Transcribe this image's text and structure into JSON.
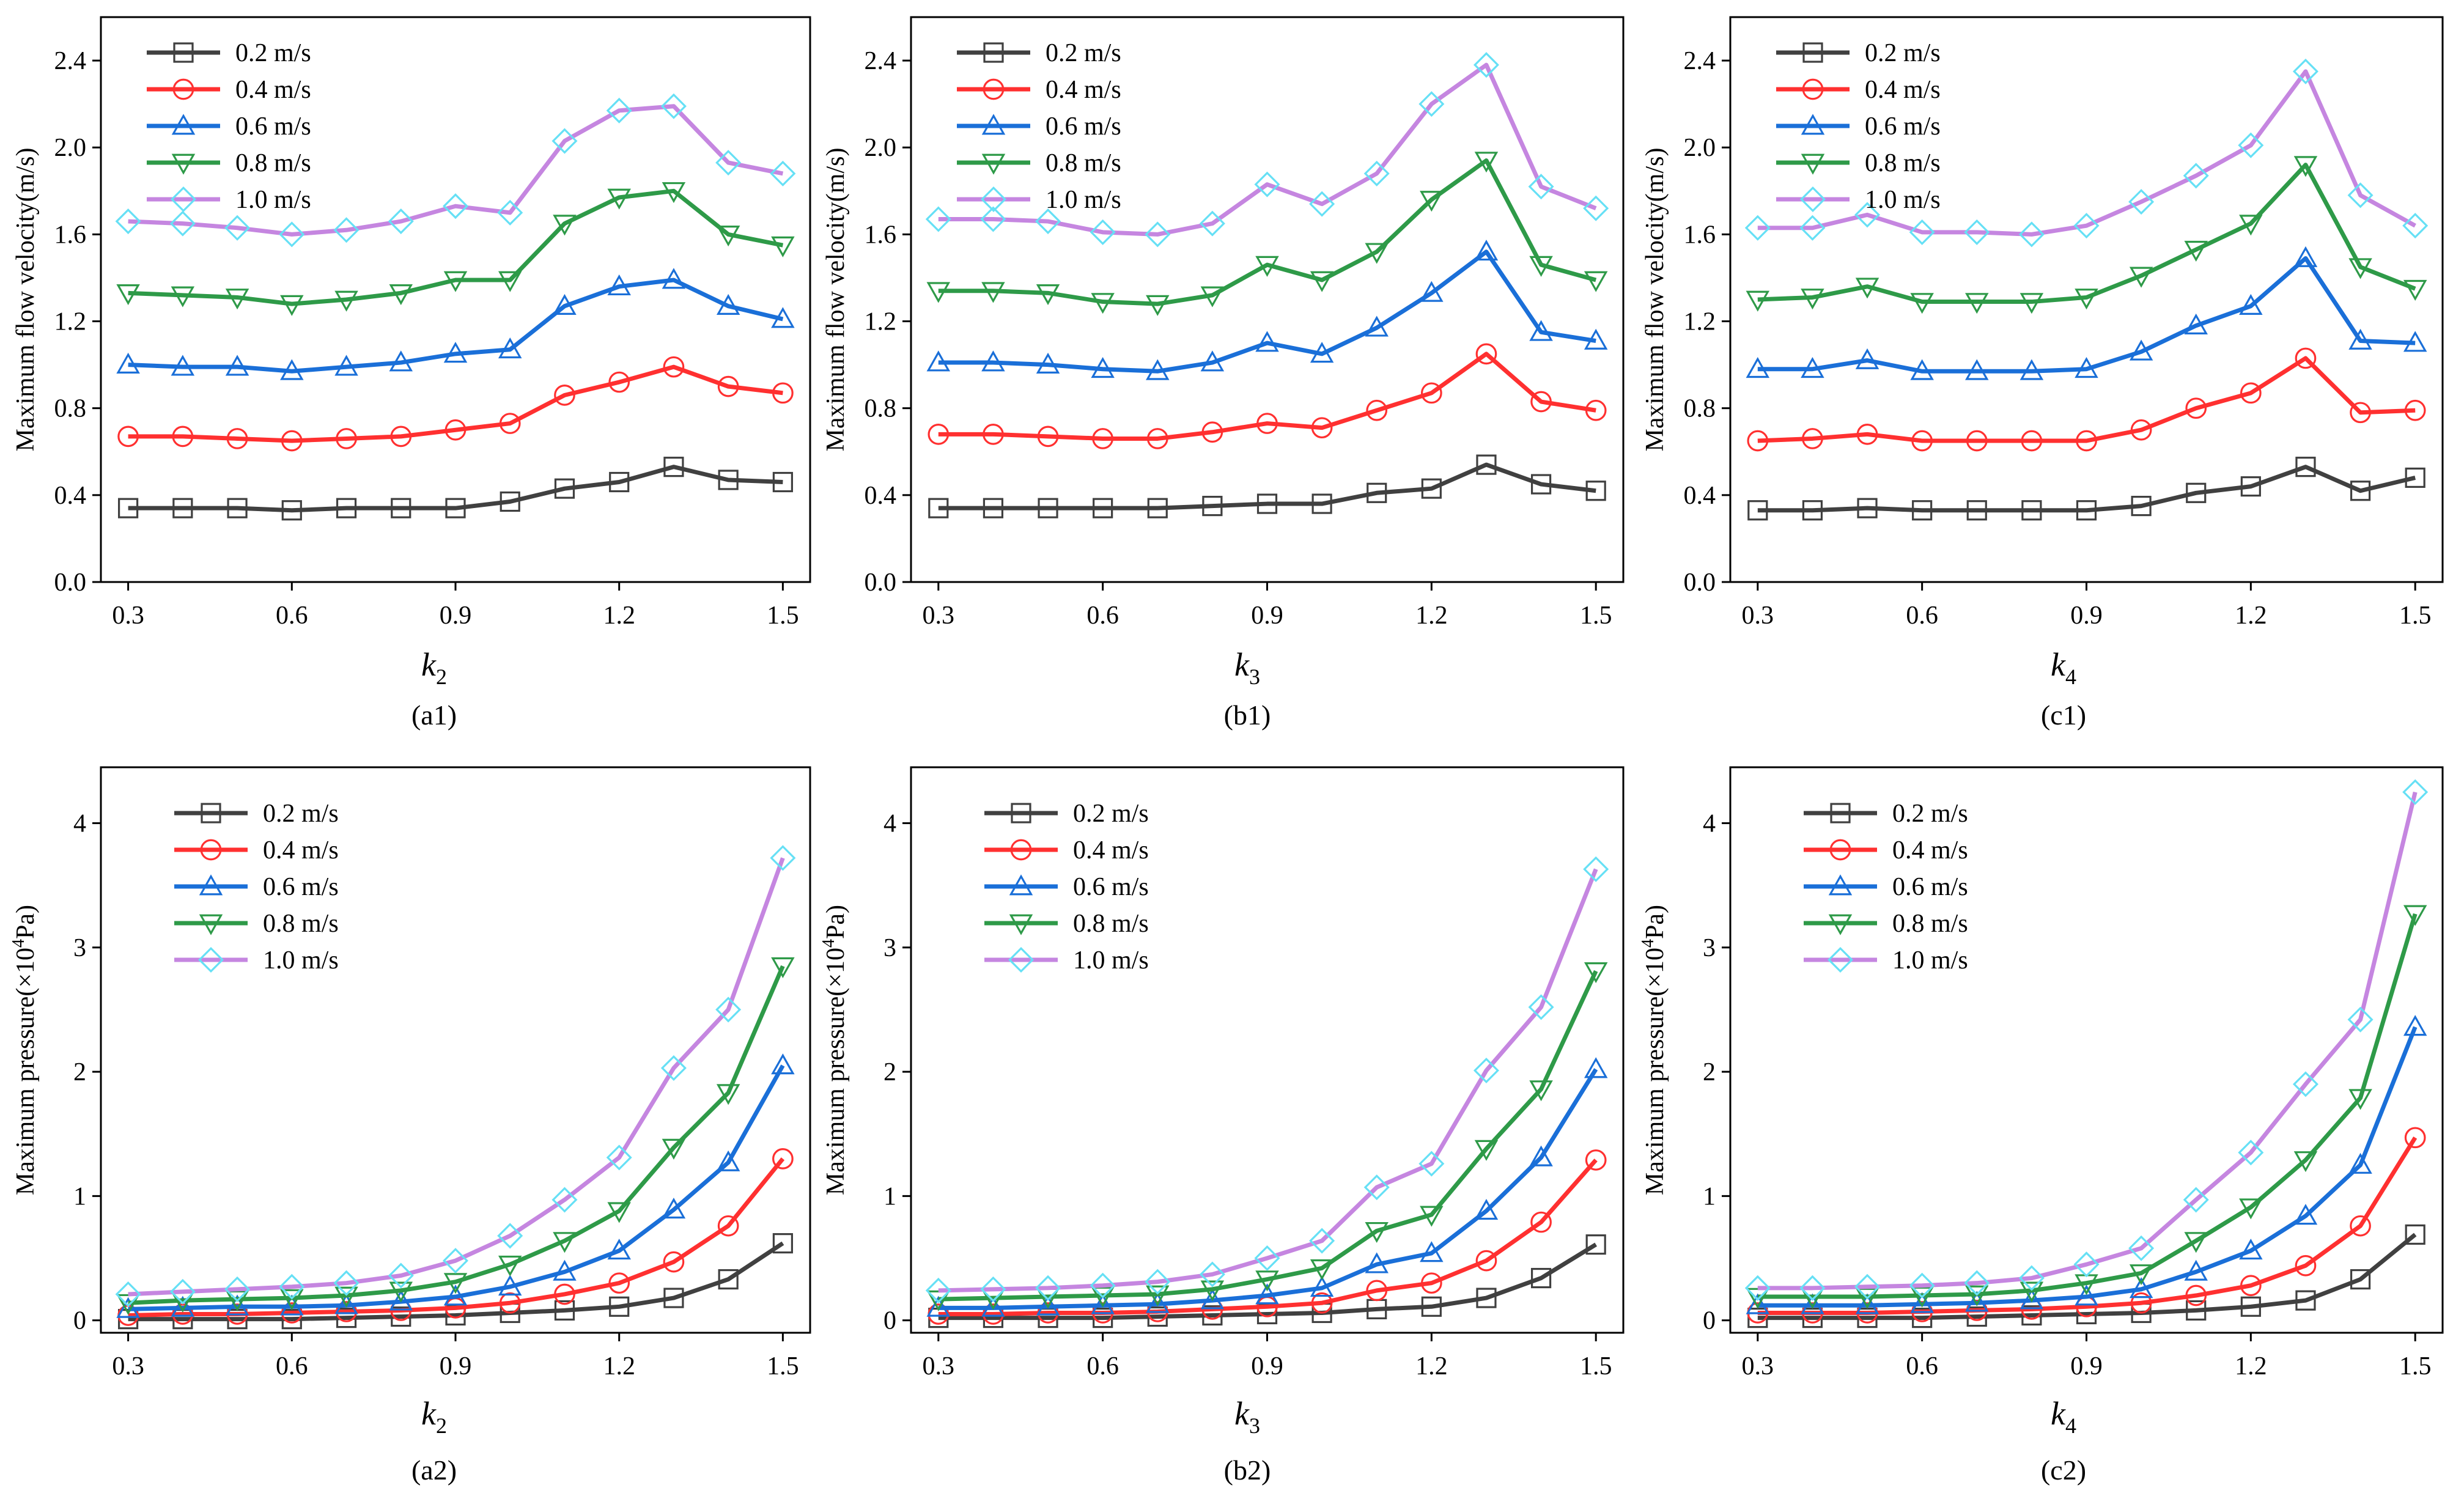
{
  "figure": {
    "series_styles": [
      {
        "color": "#404040",
        "marker": "square"
      },
      {
        "color": "#ff3030",
        "marker": "circle"
      },
      {
        "color": "#1a6fd8",
        "marker": "triangle-up"
      },
      {
        "color": "#2e9a48",
        "marker": "triangle-down"
      },
      {
        "color": "#c586e0",
        "marker": "diamond",
        "marker_color": "#66e0f5"
      }
    ]
  },
  "chart_data": [
    {
      "id": "a1",
      "type": "line",
      "caption": "(a1)",
      "xlabel": "k",
      "xlabel_sub": "2",
      "ylabel": "Maximum flow velocity(m/s)",
      "xlim": [
        0.25,
        1.55
      ],
      "ylim": [
        0,
        2.6
      ],
      "xticks": [
        "0.3",
        "0.6",
        "0.9",
        "1.2",
        "1.5"
      ],
      "yticks": [
        "0.0",
        "0.4",
        "0.8",
        "1.2",
        "1.6",
        "2.0",
        "2.4"
      ],
      "xtick_values": [
        0.3,
        0.6,
        0.9,
        1.2,
        1.5
      ],
      "ytick_values": [
        0,
        0.4,
        0.8,
        1.2,
        1.6,
        2.0,
        2.4
      ],
      "legend_position": "top-left",
      "x": [
        0.3,
        0.4,
        0.5,
        0.6,
        0.7,
        0.8,
        0.9,
        1.0,
        1.1,
        1.2,
        1.3,
        1.4,
        1.5
      ],
      "series": [
        {
          "name": "0.2 m/s",
          "values": [
            0.34,
            0.34,
            0.34,
            0.33,
            0.34,
            0.34,
            0.34,
            0.37,
            0.43,
            0.46,
            0.53,
            0.47,
            0.46
          ]
        },
        {
          "name": "0.4 m/s",
          "values": [
            0.67,
            0.67,
            0.66,
            0.65,
            0.66,
            0.67,
            0.7,
            0.73,
            0.86,
            0.92,
            0.99,
            0.9,
            0.87
          ]
        },
        {
          "name": "0.6 m/s",
          "values": [
            1.0,
            0.99,
            0.99,
            0.97,
            0.99,
            1.01,
            1.05,
            1.07,
            1.27,
            1.36,
            1.39,
            1.27,
            1.21
          ]
        },
        {
          "name": "0.8 m/s",
          "values": [
            1.33,
            1.32,
            1.31,
            1.28,
            1.3,
            1.33,
            1.39,
            1.39,
            1.65,
            1.77,
            1.8,
            1.6,
            1.55
          ]
        },
        {
          "name": "1.0 m/s",
          "values": [
            1.66,
            1.65,
            1.63,
            1.6,
            1.62,
            1.66,
            1.73,
            1.7,
            2.03,
            2.17,
            2.19,
            1.93,
            1.88
          ]
        }
      ]
    },
    {
      "id": "b1",
      "type": "line",
      "caption": "(b1)",
      "xlabel": "k",
      "xlabel_sub": "3",
      "ylabel": "Maximum flow velocity(m/s)",
      "xlim": [
        0.25,
        1.55
      ],
      "ylim": [
        0,
        2.6
      ],
      "xticks": [
        "0.3",
        "0.6",
        "0.9",
        "1.2",
        "1.5"
      ],
      "yticks": [
        "0.0",
        "0.4",
        "0.8",
        "1.2",
        "1.6",
        "2.0",
        "2.4"
      ],
      "xtick_values": [
        0.3,
        0.6,
        0.9,
        1.2,
        1.5
      ],
      "ytick_values": [
        0,
        0.4,
        0.8,
        1.2,
        1.6,
        2.0,
        2.4
      ],
      "legend_position": "top-left",
      "x": [
        0.3,
        0.4,
        0.5,
        0.6,
        0.7,
        0.8,
        0.9,
        1.0,
        1.1,
        1.2,
        1.3,
        1.4,
        1.5
      ],
      "series": [
        {
          "name": "0.2 m/s",
          "values": [
            0.34,
            0.34,
            0.34,
            0.34,
            0.34,
            0.35,
            0.36,
            0.36,
            0.41,
            0.43,
            0.54,
            0.45,
            0.42
          ]
        },
        {
          "name": "0.4 m/s",
          "values": [
            0.68,
            0.68,
            0.67,
            0.66,
            0.66,
            0.69,
            0.73,
            0.71,
            0.79,
            0.87,
            1.05,
            0.83,
            0.79
          ]
        },
        {
          "name": "0.6 m/s",
          "values": [
            1.01,
            1.01,
            1.0,
            0.98,
            0.97,
            1.01,
            1.1,
            1.05,
            1.17,
            1.33,
            1.52,
            1.15,
            1.11
          ]
        },
        {
          "name": "0.8 m/s",
          "values": [
            1.34,
            1.34,
            1.33,
            1.29,
            1.28,
            1.32,
            1.46,
            1.39,
            1.52,
            1.76,
            1.94,
            1.46,
            1.39
          ]
        },
        {
          "name": "1.0 m/s",
          "values": [
            1.67,
            1.67,
            1.66,
            1.61,
            1.6,
            1.65,
            1.83,
            1.74,
            1.88,
            2.2,
            2.38,
            1.82,
            1.72
          ]
        }
      ]
    },
    {
      "id": "c1",
      "type": "line",
      "caption": "(c1)",
      "xlabel": "k",
      "xlabel_sub": "4",
      "ylabel": "Maximum flow velocity(m/s)",
      "xlim": [
        0.25,
        1.55
      ],
      "ylim": [
        0,
        2.6
      ],
      "xticks": [
        "0.3",
        "0.6",
        "0.9",
        "1.2",
        "1.5"
      ],
      "yticks": [
        "0.0",
        "0.4",
        "0.8",
        "1.2",
        "1.6",
        "2.0",
        "2.4"
      ],
      "xtick_values": [
        0.3,
        0.6,
        0.9,
        1.2,
        1.5
      ],
      "ytick_values": [
        0,
        0.4,
        0.8,
        1.2,
        1.6,
        2.0,
        2.4
      ],
      "legend_position": "top-left",
      "x": [
        0.3,
        0.4,
        0.5,
        0.6,
        0.7,
        0.8,
        0.9,
        1.0,
        1.1,
        1.2,
        1.3,
        1.4,
        1.5
      ],
      "series": [
        {
          "name": "0.2 m/s",
          "values": [
            0.33,
            0.33,
            0.34,
            0.33,
            0.33,
            0.33,
            0.33,
            0.35,
            0.41,
            0.44,
            0.53,
            0.42,
            0.48
          ]
        },
        {
          "name": "0.4 m/s",
          "values": [
            0.65,
            0.66,
            0.68,
            0.65,
            0.65,
            0.65,
            0.65,
            0.7,
            0.8,
            0.87,
            1.03,
            0.78,
            0.79
          ]
        },
        {
          "name": "0.6 m/s",
          "values": [
            0.98,
            0.98,
            1.02,
            0.97,
            0.97,
            0.97,
            0.98,
            1.06,
            1.18,
            1.27,
            1.49,
            1.11,
            1.1
          ]
        },
        {
          "name": "0.8 m/s",
          "values": [
            1.3,
            1.31,
            1.36,
            1.29,
            1.29,
            1.29,
            1.31,
            1.41,
            1.53,
            1.65,
            1.92,
            1.45,
            1.35
          ]
        },
        {
          "name": "1.0 m/s",
          "values": [
            1.63,
            1.63,
            1.69,
            1.61,
            1.61,
            1.6,
            1.64,
            1.75,
            1.87,
            2.01,
            2.35,
            1.78,
            1.64
          ]
        }
      ]
    },
    {
      "id": "a2",
      "type": "line",
      "caption": "(a2)",
      "xlabel": "k",
      "xlabel_sub": "2",
      "ylabel_pre": "Maximum pressure(×10",
      "ylabel_sup": "4",
      "ylabel_post": "Pa)",
      "xlim": [
        0.25,
        1.55
      ],
      "ylim": [
        -0.1,
        4.45
      ],
      "xticks": [
        "0.3",
        "0.6",
        "0.9",
        "1.2",
        "1.5"
      ],
      "yticks": [
        "0",
        "1",
        "2",
        "3",
        "4"
      ],
      "xtick_values": [
        0.3,
        0.6,
        0.9,
        1.2,
        1.5
      ],
      "ytick_values": [
        0,
        1,
        2,
        3,
        4
      ],
      "legend_position": "top-left",
      "x": [
        0.3,
        0.4,
        0.5,
        0.6,
        0.7,
        0.8,
        0.9,
        1.0,
        1.1,
        1.2,
        1.3,
        1.4,
        1.5
      ],
      "series": [
        {
          "name": "0.2 m/s",
          "values": [
            0.01,
            0.01,
            0.01,
            0.01,
            0.02,
            0.03,
            0.04,
            0.06,
            0.08,
            0.11,
            0.18,
            0.33,
            0.62
          ]
        },
        {
          "name": "0.4 m/s",
          "values": [
            0.04,
            0.05,
            0.05,
            0.06,
            0.07,
            0.08,
            0.1,
            0.14,
            0.21,
            0.3,
            0.47,
            0.76,
            1.3
          ]
        },
        {
          "name": "0.6 m/s",
          "values": [
            0.09,
            0.1,
            0.11,
            0.11,
            0.12,
            0.15,
            0.19,
            0.27,
            0.39,
            0.56,
            0.89,
            1.27,
            2.05
          ]
        },
        {
          "name": "0.8 m/s",
          "values": [
            0.14,
            0.16,
            0.17,
            0.18,
            0.2,
            0.24,
            0.31,
            0.45,
            0.64,
            0.88,
            1.39,
            1.83,
            2.85
          ]
        },
        {
          "name": "1.0 m/s",
          "values": [
            0.21,
            0.23,
            0.25,
            0.27,
            0.3,
            0.36,
            0.48,
            0.68,
            0.97,
            1.31,
            2.03,
            2.5,
            3.72
          ]
        }
      ]
    },
    {
      "id": "b2",
      "type": "line",
      "caption": "(b2)",
      "xlabel": "k",
      "xlabel_sub": "3",
      "ylabel_pre": "Maximum pressure(×10",
      "ylabel_sup": "4",
      "ylabel_post": "Pa)",
      "xlim": [
        0.25,
        1.55
      ],
      "ylim": [
        -0.1,
        4.45
      ],
      "xticks": [
        "0.3",
        "0.6",
        "0.9",
        "1.2",
        "1.5"
      ],
      "yticks": [
        "0",
        "1",
        "2",
        "3",
        "4"
      ],
      "xtick_values": [
        0.3,
        0.6,
        0.9,
        1.2,
        1.5
      ],
      "ytick_values": [
        0,
        1,
        2,
        3,
        4
      ],
      "legend_position": "top-left",
      "x": [
        0.3,
        0.4,
        0.5,
        0.6,
        0.7,
        0.8,
        0.9,
        1.0,
        1.1,
        1.2,
        1.3,
        1.4,
        1.5
      ],
      "series": [
        {
          "name": "0.2 m/s",
          "values": [
            0.02,
            0.02,
            0.02,
            0.02,
            0.03,
            0.04,
            0.05,
            0.06,
            0.09,
            0.11,
            0.18,
            0.34,
            0.61
          ]
        },
        {
          "name": "0.4 m/s",
          "values": [
            0.05,
            0.05,
            0.06,
            0.06,
            0.07,
            0.09,
            0.11,
            0.14,
            0.24,
            0.3,
            0.48,
            0.79,
            1.29
          ]
        },
        {
          "name": "0.6 m/s",
          "values": [
            0.1,
            0.1,
            0.11,
            0.12,
            0.13,
            0.16,
            0.2,
            0.26,
            0.45,
            0.54,
            0.88,
            1.31,
            2.02
          ]
        },
        {
          "name": "0.8 m/s",
          "values": [
            0.17,
            0.18,
            0.19,
            0.2,
            0.21,
            0.25,
            0.33,
            0.42,
            0.72,
            0.85,
            1.38,
            1.86,
            2.81
          ]
        },
        {
          "name": "1.0 m/s",
          "values": [
            0.24,
            0.25,
            0.26,
            0.28,
            0.31,
            0.37,
            0.5,
            0.64,
            1.07,
            1.26,
            2.01,
            2.52,
            3.63
          ]
        }
      ]
    },
    {
      "id": "c2",
      "type": "line",
      "caption": "(c2)",
      "xlabel": "k",
      "xlabel_sub": "4",
      "ylabel_pre": "Maximum pressure(×10",
      "ylabel_sup": "4",
      "ylabel_post": "Pa)",
      "xlim": [
        0.25,
        1.55
      ],
      "ylim": [
        -0.1,
        4.45
      ],
      "xticks": [
        "0.3",
        "0.6",
        "0.9",
        "1.2",
        "1.5"
      ],
      "yticks": [
        "0",
        "1",
        "2",
        "3",
        "4"
      ],
      "xtick_values": [
        0.3,
        0.6,
        0.9,
        1.2,
        1.5
      ],
      "ytick_values": [
        0,
        1,
        2,
        3,
        4
      ],
      "legend_position": "top-left",
      "x": [
        0.3,
        0.4,
        0.5,
        0.6,
        0.7,
        0.8,
        0.9,
        1.0,
        1.1,
        1.2,
        1.3,
        1.4,
        1.5
      ],
      "series": [
        {
          "name": "0.2 m/s",
          "values": [
            0.02,
            0.02,
            0.02,
            0.02,
            0.03,
            0.04,
            0.05,
            0.06,
            0.08,
            0.11,
            0.16,
            0.33,
            0.69
          ]
        },
        {
          "name": "0.4 m/s",
          "values": [
            0.06,
            0.06,
            0.06,
            0.07,
            0.08,
            0.09,
            0.11,
            0.14,
            0.2,
            0.28,
            0.44,
            0.76,
            1.47
          ]
        },
        {
          "name": "0.6 m/s",
          "values": [
            0.12,
            0.12,
            0.12,
            0.13,
            0.14,
            0.16,
            0.19,
            0.25,
            0.39,
            0.56,
            0.84,
            1.25,
            2.36
          ]
        },
        {
          "name": "0.8 m/s",
          "values": [
            0.19,
            0.19,
            0.19,
            0.2,
            0.21,
            0.24,
            0.3,
            0.38,
            0.64,
            0.91,
            1.29,
            1.79,
            3.27
          ]
        },
        {
          "name": "1.0 m/s",
          "values": [
            0.26,
            0.26,
            0.27,
            0.28,
            0.3,
            0.34,
            0.45,
            0.58,
            0.97,
            1.35,
            1.9,
            2.42,
            4.25
          ]
        }
      ]
    }
  ]
}
